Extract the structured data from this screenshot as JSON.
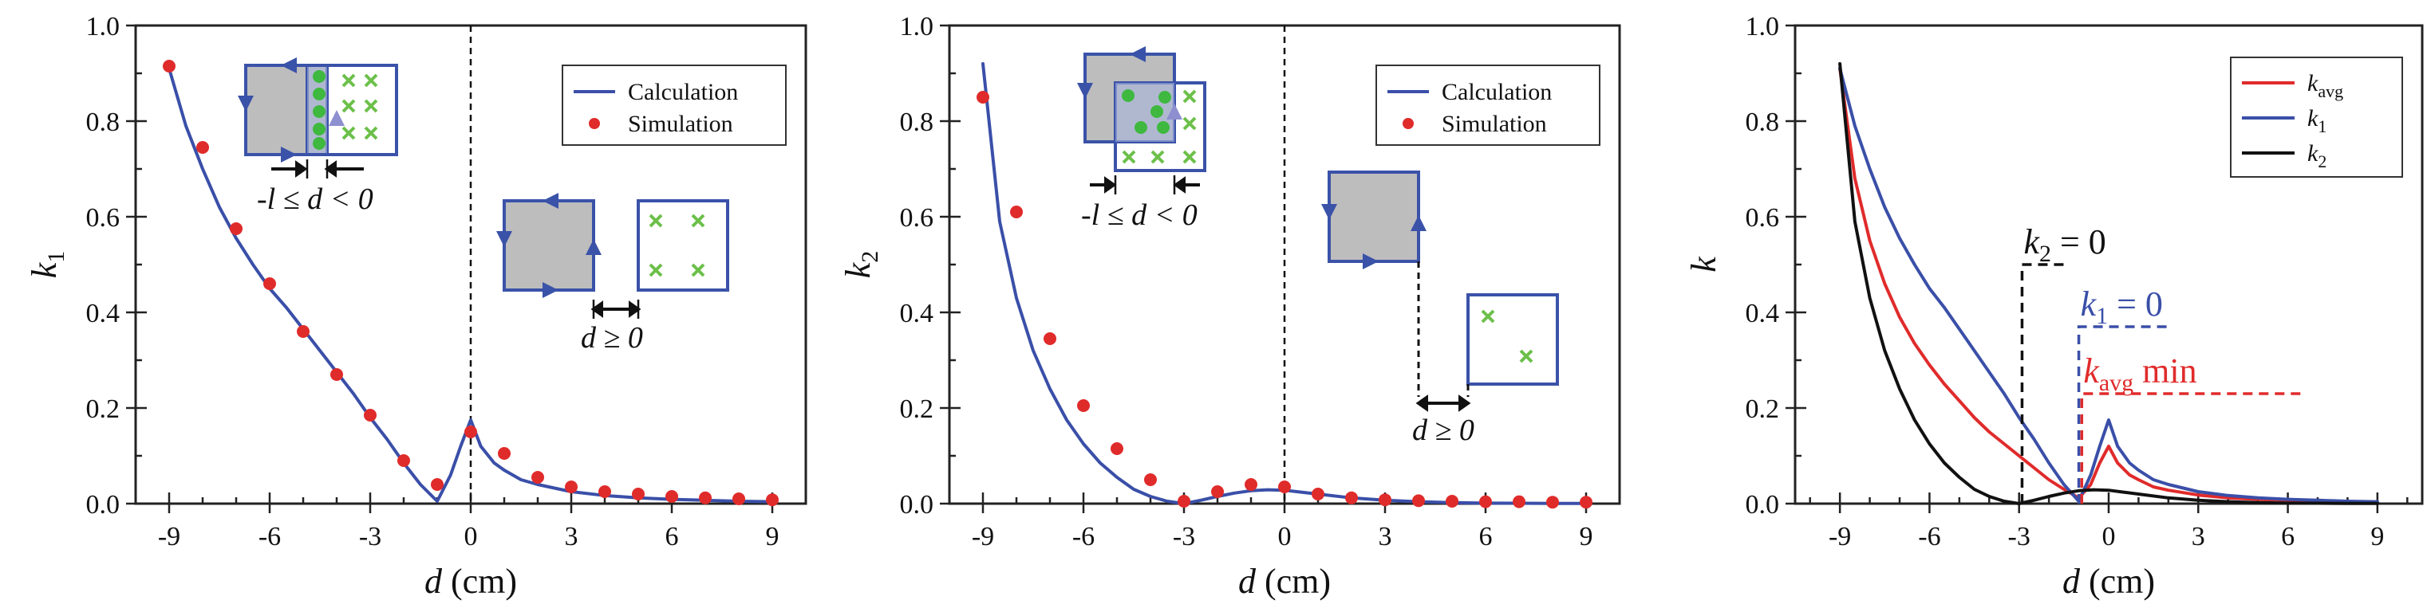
{
  "chart_data": [
    {
      "type": "line+scatter",
      "panel": "left",
      "xlabel_var": "d",
      "xlabel_unit": " (cm)",
      "ylabel_main": "k",
      "ylabel_sub": "1",
      "xlim": [
        -10,
        10
      ],
      "ylim": [
        0,
        1.0
      ],
      "xticks": [
        -9,
        -6,
        -3,
        0,
        3,
        6,
        9
      ],
      "yticks": [
        0.0,
        0.2,
        0.4,
        0.6,
        0.8,
        1.0
      ],
      "ytick_labels": [
        "0.0",
        "0.2",
        "0.4",
        "0.6",
        "0.8",
        "1.0"
      ],
      "zero_line": true,
      "legend_position": "top-right",
      "series": [
        {
          "name": "Calculation",
          "kind": "line",
          "color": "#3a4fa8",
          "x": [
            -9,
            -8.5,
            -8,
            -7.5,
            -7,
            -6.5,
            -6,
            -5.5,
            -5,
            -4.5,
            -4,
            -3.5,
            -3,
            -2.5,
            -2,
            -1.5,
            -1,
            -0.6,
            -0.3,
            0,
            0.3,
            0.7,
            1,
            1.5,
            2,
            3,
            4,
            5,
            6,
            7,
            8,
            9
          ],
          "y": [
            0.91,
            0.79,
            0.7,
            0.62,
            0.555,
            0.5,
            0.45,
            0.41,
            0.365,
            0.32,
            0.275,
            0.23,
            0.18,
            0.135,
            0.085,
            0.04,
            0.005,
            0.06,
            0.12,
            0.175,
            0.12,
            0.085,
            0.07,
            0.05,
            0.04,
            0.025,
            0.017,
            0.012,
            0.009,
            0.007,
            0.005,
            0.004
          ]
        },
        {
          "name": "Simulation",
          "kind": "scatter",
          "color": "#e02b2b",
          "x": [
            -9,
            -8,
            -7,
            -6,
            -5,
            -4,
            -3,
            -2,
            -1,
            0,
            1,
            2,
            3,
            4,
            5,
            6,
            7,
            8,
            9
          ],
          "y": [
            0.915,
            0.745,
            0.575,
            0.46,
            0.36,
            0.27,
            0.185,
            0.09,
            0.04,
            0.15,
            0.105,
            0.055,
            0.035,
            0.025,
            0.02,
            0.015,
            0.012,
            0.01,
            0.008
          ]
        }
      ],
      "annotations": [
        "-l ≤ d < 0",
        "d ≥ 0"
      ]
    },
    {
      "type": "line+scatter",
      "panel": "middle",
      "xlabel_var": "d",
      "xlabel_unit": " (cm)",
      "ylabel_main": "k",
      "ylabel_sub": "2",
      "xlim": [
        -10,
        10
      ],
      "ylim": [
        0,
        1.0
      ],
      "xticks": [
        -9,
        -6,
        -3,
        0,
        3,
        6,
        9
      ],
      "yticks": [
        0.0,
        0.2,
        0.4,
        0.6,
        0.8,
        1.0
      ],
      "ytick_labels": [
        "0.0",
        "0.2",
        "0.4",
        "0.6",
        "0.8",
        "1.0"
      ],
      "zero_line": true,
      "legend_position": "top-right",
      "series": [
        {
          "name": "Calculation",
          "kind": "line",
          "color": "#3a4fa8",
          "x": [
            -9,
            -8.5,
            -8,
            -7.5,
            -7,
            -6.5,
            -6,
            -5.5,
            -5,
            -4.5,
            -4,
            -3.5,
            -3,
            -2.5,
            -2,
            -1.5,
            -1,
            -0.5,
            0,
            0.5,
            1,
            2,
            3,
            4,
            5,
            6,
            7,
            8,
            9
          ],
          "y": [
            0.92,
            0.59,
            0.43,
            0.32,
            0.24,
            0.175,
            0.125,
            0.085,
            0.055,
            0.03,
            0.015,
            0.005,
            0.0,
            0.007,
            0.015,
            0.022,
            0.027,
            0.029,
            0.028,
            0.024,
            0.02,
            0.012,
            0.007,
            0.004,
            0.002,
            0.001,
            0.0008,
            0.0005,
            0.0003
          ]
        },
        {
          "name": "Simulation",
          "kind": "scatter",
          "color": "#e02b2b",
          "x": [
            -9,
            -8,
            -7,
            -6,
            -5,
            -4,
            -3,
            -2,
            -1,
            0,
            1,
            2,
            3,
            4,
            5,
            6,
            7,
            8,
            9
          ],
          "y": [
            0.85,
            0.61,
            0.345,
            0.205,
            0.115,
            0.05,
            0.005,
            0.025,
            0.04,
            0.035,
            0.02,
            0.012,
            0.008,
            0.006,
            0.005,
            0.004,
            0.004,
            0.003,
            0.003
          ]
        }
      ],
      "annotations": [
        "-l ≤ d < 0",
        "d ≥ 0"
      ]
    },
    {
      "type": "line",
      "panel": "right",
      "xlabel_var": "d",
      "xlabel_unit": " (cm)",
      "ylabel_main": "k",
      "ylabel_sub": "",
      "xlim": [
        -10.5,
        10.5
      ],
      "ylim": [
        0,
        1.0
      ],
      "xticks": [
        -9,
        -6,
        -3,
        0,
        3,
        6,
        9
      ],
      "yticks": [
        0.0,
        0.2,
        0.4,
        0.6,
        0.8,
        1.0
      ],
      "ytick_labels": [
        "0.0",
        "0.2",
        "0.4",
        "0.6",
        "0.8",
        "1.0"
      ],
      "zero_line": false,
      "legend_position": "top-right",
      "series": [
        {
          "name": "avg",
          "legend_main": "k",
          "legend_sub": "avg",
          "kind": "line",
          "color": "#e02b2b",
          "x": [
            -9,
            -8.5,
            -8,
            -7.5,
            -7,
            -6.5,
            -6,
            -5.5,
            -5,
            -4.5,
            -4,
            -3.5,
            -3,
            -2.5,
            -2,
            -1.5,
            -1,
            -0.6,
            -0.3,
            0,
            0.3,
            0.7,
            1,
            1.5,
            2,
            3,
            4,
            5,
            6,
            7,
            8,
            9
          ],
          "y": [
            0.91,
            0.68,
            0.55,
            0.46,
            0.39,
            0.335,
            0.29,
            0.25,
            0.215,
            0.18,
            0.15,
            0.125,
            0.1,
            0.075,
            0.05,
            0.03,
            0.012,
            0.04,
            0.085,
            0.12,
            0.085,
            0.06,
            0.05,
            0.035,
            0.028,
            0.018,
            0.012,
            0.009,
            0.007,
            0.005,
            0.004,
            0.003
          ]
        },
        {
          "name": "1",
          "legend_main": "k",
          "legend_sub": "1",
          "kind": "line",
          "color": "#3a4fa8",
          "x": [
            -9,
            -8.5,
            -8,
            -7.5,
            -7,
            -6.5,
            -6,
            -5.5,
            -5,
            -4.5,
            -4,
            -3.5,
            -3,
            -2.5,
            -2,
            -1.5,
            -1,
            -0.6,
            -0.3,
            0,
            0.3,
            0.7,
            1,
            1.5,
            2,
            3,
            4,
            5,
            6,
            7,
            8,
            9
          ],
          "y": [
            0.91,
            0.79,
            0.7,
            0.62,
            0.555,
            0.5,
            0.45,
            0.41,
            0.365,
            0.32,
            0.275,
            0.23,
            0.18,
            0.135,
            0.085,
            0.04,
            0.005,
            0.06,
            0.12,
            0.175,
            0.12,
            0.085,
            0.07,
            0.05,
            0.04,
            0.025,
            0.017,
            0.012,
            0.009,
            0.007,
            0.005,
            0.004
          ]
        },
        {
          "name": "2",
          "legend_main": "k",
          "legend_sub": "2",
          "kind": "line",
          "color": "#111111",
          "x": [
            -9,
            -8.5,
            -8,
            -7.5,
            -7,
            -6.5,
            -6,
            -5.5,
            -5,
            -4.5,
            -4,
            -3.5,
            -3,
            -2.5,
            -2,
            -1.5,
            -1,
            -0.5,
            0,
            0.5,
            1,
            2,
            3,
            4,
            5,
            6,
            7,
            8,
            9
          ],
          "y": [
            0.92,
            0.59,
            0.43,
            0.32,
            0.24,
            0.175,
            0.125,
            0.085,
            0.055,
            0.03,
            0.015,
            0.005,
            0.0,
            0.007,
            0.015,
            0.022,
            0.027,
            0.029,
            0.028,
            0.024,
            0.02,
            0.012,
            0.007,
            0.004,
            0.002,
            0.001,
            0.0008,
            0.0005,
            0.0003
          ]
        }
      ],
      "markers": [
        {
          "label_main": "k",
          "label_sub": "2",
          "label_rest": " = 0",
          "x": -2.9,
          "y": 0.5,
          "x_end": -1.3,
          "color": "#111111"
        },
        {
          "label_main": "k",
          "label_sub": "1",
          "label_rest": " = 0",
          "x": -1.0,
          "y": 0.37,
          "x_end": 2.0,
          "color": "#3a4fa8"
        },
        {
          "label_main": "k",
          "label_sub": "avg",
          "label_rest": " min",
          "x": -0.9,
          "y": 0.23,
          "x_end": 6.5,
          "color": "#e02b2b"
        }
      ]
    }
  ],
  "insets": {
    "colors": {
      "blue": "#3a52a8",
      "gray": "#bdbdbd",
      "green_dot": "#3fb83f",
      "green_x": "#6cc04a"
    }
  }
}
